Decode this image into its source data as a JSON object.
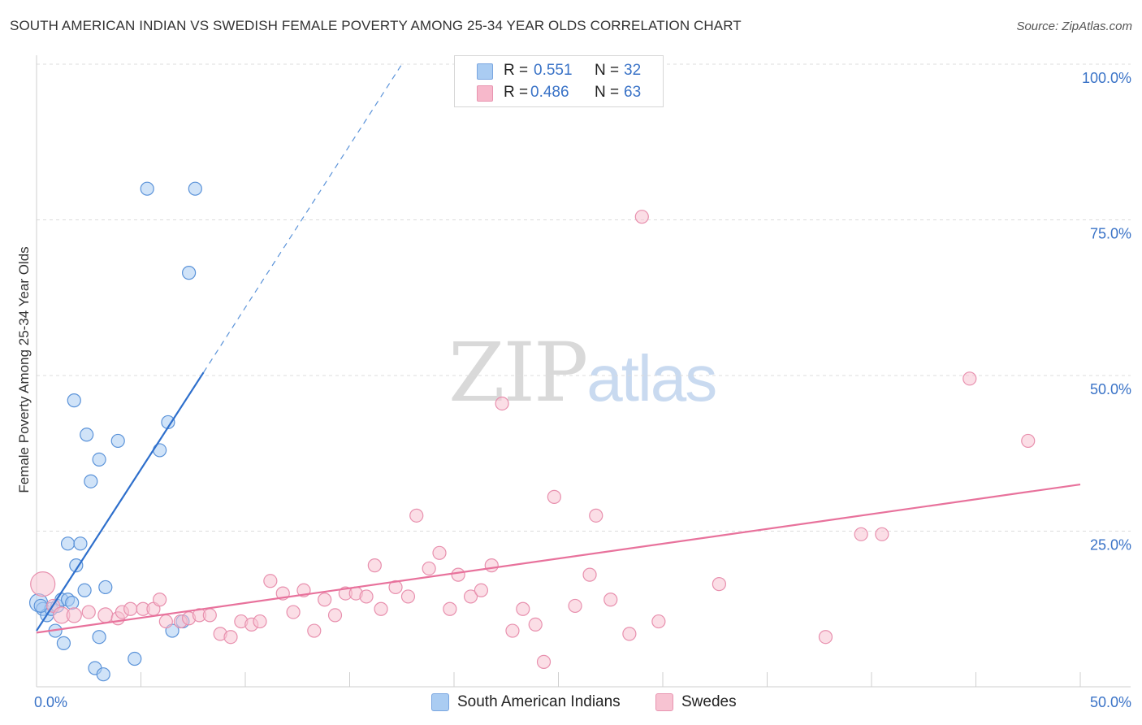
{
  "title": "SOUTH AMERICAN INDIAN VS SWEDISH FEMALE POVERTY AMONG 25-34 YEAR OLDS CORRELATION CHART",
  "source": "Source: ZipAtlas.com",
  "watermark": {
    "zip": "ZIP",
    "atlas": "atlas"
  },
  "stats": {
    "rows": [
      {
        "r_label": "R =",
        "r_value": "0.551",
        "n_label": "N =",
        "n_value": "32",
        "color": "#aaccf2"
      },
      {
        "r_label": "R =",
        "r_value": "0.486",
        "n_label": "N =",
        "n_value": "63",
        "color": "#f7b8cb"
      }
    ]
  },
  "legend": {
    "items": [
      {
        "label": "South American Indians",
        "color": "#aaccf2",
        "border": "#7aa6e0"
      },
      {
        "label": "Swedes",
        "color": "#f7c3d2",
        "border": "#e894b0"
      }
    ]
  },
  "chart_data": {
    "type": "scatter",
    "title": "SOUTH AMERICAN INDIAN VS SWEDISH FEMALE POVERTY AMONG 25-34 YEAR OLDS CORRELATION CHART",
    "xlabel": "",
    "ylabel": "Female Poverty Among 25-34 Year Olds",
    "xlim": [
      0,
      50
    ],
    "ylim": [
      0,
      100
    ],
    "x_tick_labels": [
      {
        "value": 0,
        "label": "0.0%"
      },
      {
        "value": 50,
        "label": "50.0%"
      }
    ],
    "y_tick_labels": [
      {
        "value": 25,
        "label": "25.0%"
      },
      {
        "value": 50,
        "label": "50.0%"
      },
      {
        "value": 75,
        "label": "75.0%"
      },
      {
        "value": 100,
        "label": "100.0%"
      }
    ],
    "grid": true,
    "legend_position": "bottom",
    "series": [
      {
        "name": "South American Indians",
        "color": "#5b93d9",
        "fill": "#aaccf2",
        "line_color": "#2e6fcc",
        "r": 0.551,
        "n": 32,
        "trend": {
          "x0": 0,
          "y0": 9,
          "x1": 8,
          "y1": 50.5,
          "dash_x1": 17.5,
          "dash_y1": 100
        },
        "points": [
          {
            "x": 0.1,
            "y": 13.5,
            "size": 22
          },
          {
            "x": 0.3,
            "y": 12.5
          },
          {
            "x": 0.5,
            "y": 11.5
          },
          {
            "x": 0.7,
            "y": 12.5
          },
          {
            "x": 0.9,
            "y": 9
          },
          {
            "x": 1.0,
            "y": 13
          },
          {
            "x": 1.2,
            "y": 14
          },
          {
            "x": 1.3,
            "y": 7
          },
          {
            "x": 1.5,
            "y": 14
          },
          {
            "x": 1.5,
            "y": 23
          },
          {
            "x": 1.7,
            "y": 13.5
          },
          {
            "x": 1.8,
            "y": 46
          },
          {
            "x": 1.9,
            "y": 19.5
          },
          {
            "x": 2.1,
            "y": 23
          },
          {
            "x": 2.3,
            "y": 15.5
          },
          {
            "x": 2.4,
            "y": 40.5
          },
          {
            "x": 2.6,
            "y": 33
          },
          {
            "x": 2.8,
            "y": 3
          },
          {
            "x": 3.0,
            "y": 36.5
          },
          {
            "x": 3.0,
            "y": 8
          },
          {
            "x": 3.2,
            "y": 2
          },
          {
            "x": 3.3,
            "y": 16
          },
          {
            "x": 3.9,
            "y": 39.5
          },
          {
            "x": 4.7,
            "y": 4.5
          },
          {
            "x": 5.3,
            "y": 80
          },
          {
            "x": 5.9,
            "y": 38
          },
          {
            "x": 6.3,
            "y": 42.5
          },
          {
            "x": 6.5,
            "y": 9
          },
          {
            "x": 7.0,
            "y": 10.5
          },
          {
            "x": 7.3,
            "y": 66.5
          },
          {
            "x": 7.6,
            "y": 80
          },
          {
            "x": 0.2,
            "y": 13
          }
        ]
      },
      {
        "name": "Swedes",
        "color": "#e890ae",
        "fill": "#f7c3d2",
        "line_color": "#e8729c",
        "r": 0.486,
        "n": 63,
        "trend": {
          "x0": 0,
          "y0": 8.7,
          "x1": 50,
          "y1": 32.5
        },
        "points": [
          {
            "x": 0.3,
            "y": 16.5,
            "size": 30
          },
          {
            "x": 0.8,
            "y": 13
          },
          {
            "x": 1.2,
            "y": 11.5,
            "size": 20
          },
          {
            "x": 1.8,
            "y": 11.5,
            "size": 18
          },
          {
            "x": 2.5,
            "y": 12
          },
          {
            "x": 3.3,
            "y": 11.5,
            "size": 18
          },
          {
            "x": 3.9,
            "y": 11
          },
          {
            "x": 4.1,
            "y": 12
          },
          {
            "x": 4.5,
            "y": 12.5
          },
          {
            "x": 5.1,
            "y": 12.5
          },
          {
            "x": 5.6,
            "y": 12.5
          },
          {
            "x": 5.9,
            "y": 14
          },
          {
            "x": 6.2,
            "y": 10.5
          },
          {
            "x": 6.9,
            "y": 10.5
          },
          {
            "x": 7.3,
            "y": 11
          },
          {
            "x": 7.8,
            "y": 11.5
          },
          {
            "x": 8.3,
            "y": 11.5
          },
          {
            "x": 8.8,
            "y": 8.5
          },
          {
            "x": 9.3,
            "y": 8
          },
          {
            "x": 9.8,
            "y": 10.5
          },
          {
            "x": 10.3,
            "y": 10
          },
          {
            "x": 10.7,
            "y": 10.5
          },
          {
            "x": 11.2,
            "y": 17
          },
          {
            "x": 11.8,
            "y": 15
          },
          {
            "x": 12.3,
            "y": 12
          },
          {
            "x": 12.8,
            "y": 15.5
          },
          {
            "x": 13.3,
            "y": 9
          },
          {
            "x": 13.8,
            "y": 14
          },
          {
            "x": 14.3,
            "y": 11.5
          },
          {
            "x": 14.8,
            "y": 15
          },
          {
            "x": 15.3,
            "y": 15
          },
          {
            "x": 15.8,
            "y": 14.5
          },
          {
            "x": 16.2,
            "y": 19.5
          },
          {
            "x": 16.5,
            "y": 12.5
          },
          {
            "x": 17.2,
            "y": 16
          },
          {
            "x": 17.8,
            "y": 14.5
          },
          {
            "x": 18.2,
            "y": 27.5
          },
          {
            "x": 18.8,
            "y": 19
          },
          {
            "x": 19.3,
            "y": 21.5
          },
          {
            "x": 19.8,
            "y": 12.5
          },
          {
            "x": 20.2,
            "y": 18
          },
          {
            "x": 20.8,
            "y": 14.5
          },
          {
            "x": 21.3,
            "y": 15.5
          },
          {
            "x": 21.8,
            "y": 19.5
          },
          {
            "x": 22.3,
            "y": 45.5
          },
          {
            "x": 22.8,
            "y": 9
          },
          {
            "x": 23.3,
            "y": 12.5
          },
          {
            "x": 23.9,
            "y": 10
          },
          {
            "x": 24.3,
            "y": 4
          },
          {
            "x": 24.8,
            "y": 30.5
          },
          {
            "x": 25.8,
            "y": 13
          },
          {
            "x": 26.5,
            "y": 18
          },
          {
            "x": 26.8,
            "y": 27.5
          },
          {
            "x": 27.5,
            "y": 14
          },
          {
            "x": 28.4,
            "y": 8.5
          },
          {
            "x": 29.0,
            "y": 75.5
          },
          {
            "x": 29.8,
            "y": 10.5
          },
          {
            "x": 32.7,
            "y": 16.5
          },
          {
            "x": 37.8,
            "y": 8
          },
          {
            "x": 39.5,
            "y": 24.5
          },
          {
            "x": 40.5,
            "y": 24.5
          },
          {
            "x": 44.7,
            "y": 49.5
          },
          {
            "x": 47.5,
            "y": 39.5
          }
        ]
      }
    ]
  }
}
